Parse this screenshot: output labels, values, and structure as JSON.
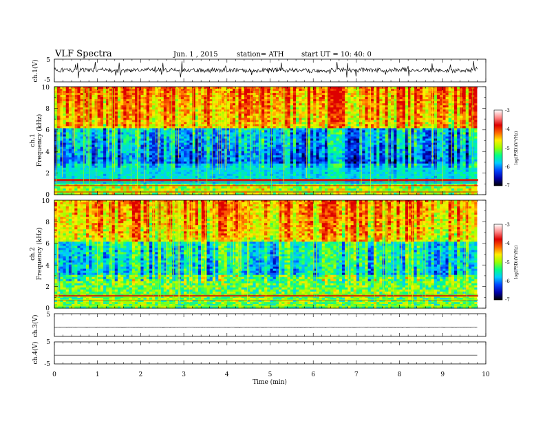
{
  "header": {
    "title": "VLF  Spectra",
    "date": "Jun. 1  , 2015",
    "station": "station= ATH",
    "start": "start  UT =   10: 40: 0"
  },
  "chart_data": [
    {
      "type": "line",
      "name": "ch1-waveform",
      "ylabel": "ch.1(V)",
      "ylim": [
        -5,
        5
      ],
      "yticks": [
        "5",
        "-5"
      ],
      "xlim": [
        0,
        10
      ],
      "x": [
        0,
        0.5,
        1,
        1.5,
        2,
        2.5,
        3,
        3.5,
        4,
        4.5,
        5,
        5.5,
        6,
        6.5,
        7,
        7.5,
        8,
        8.5,
        9,
        9.5,
        9.8
      ],
      "y": [
        0.2,
        0.1,
        0.4,
        -0.1,
        0.3,
        0.1,
        0.2,
        -0.1,
        0.3,
        0.0,
        0.4,
        0.1,
        -0.1,
        0.3,
        0.2,
        0.1,
        0.4,
        0.2,
        0.1,
        -0.1,
        0.3
      ]
    },
    {
      "type": "heatmap",
      "name": "ch1-spectrogram",
      "ylabel_top": "ch.1",
      "ylabel": "Frequency  (kHz)",
      "ylim": [
        0,
        10
      ],
      "yticks": [
        "10",
        "8",
        "6",
        "4",
        "2",
        "0"
      ],
      "xlim": [
        0,
        10
      ],
      "colorbar": {
        "label": "log(PSD)(V²/Hz)",
        "range": [
          -7,
          -3
        ],
        "ticks": [
          "-3",
          "-4",
          "-5",
          "-6",
          "-7"
        ]
      }
    },
    {
      "type": "heatmap",
      "name": "ch2-spectrogram",
      "ylabel_top": "ch.2",
      "ylabel": "Frequency  (kHz)",
      "ylim": [
        0,
        10
      ],
      "yticks": [
        "10",
        "8",
        "6",
        "4",
        "2",
        "0"
      ],
      "xlim": [
        0,
        10
      ],
      "colorbar": {
        "label": "log(PSD)(V²/Hz)",
        "range": [
          -7,
          -3
        ],
        "ticks": [
          "-3",
          "-4",
          "-5",
          "-6",
          "-7"
        ]
      }
    },
    {
      "type": "line",
      "name": "ch3-waveform",
      "ylabel": "ch.3(V)",
      "ylim": [
        -5,
        5
      ],
      "yticks": [
        "5"
      ],
      "xlim": [
        0,
        10
      ],
      "x": [
        0,
        9.8
      ],
      "y": [
        -1.0,
        -1.0
      ]
    },
    {
      "type": "line",
      "name": "ch4-waveform",
      "ylabel": "ch.4(V)",
      "ylim": [
        -5,
        5
      ],
      "yticks": [
        "5",
        "-5"
      ],
      "xlim": [
        0,
        10
      ],
      "x": [
        0,
        9.8
      ],
      "y": [
        -1.0,
        -1.0
      ]
    }
  ],
  "xaxis": {
    "label": "Time  (min)",
    "ticks": [
      "0",
      "1",
      "2",
      "3",
      "4",
      "5",
      "6",
      "7",
      "8",
      "9",
      "10"
    ]
  },
  "colors": {
    "jet": [
      "#000000",
      "#0000aa",
      "#0044ff",
      "#00ccff",
      "#00ff88",
      "#99ff00",
      "#ffee00",
      "#ff6600",
      "#dd0000"
    ]
  }
}
